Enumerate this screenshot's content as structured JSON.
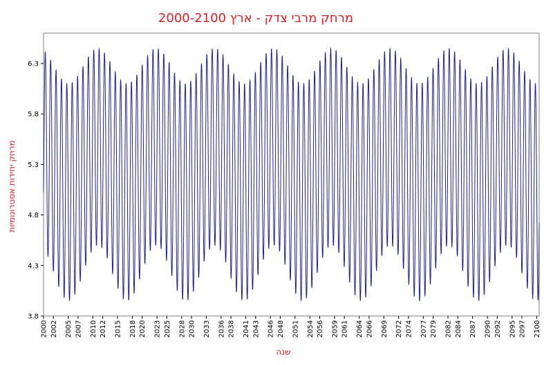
{
  "chart_data": {
    "type": "line",
    "title": "מרחק מרבי צדק - ארץ    2000-2100",
    "xlabel": "שנה",
    "ylabel": "מרחק יחידות אסטרונומיות",
    "xlim": [
      2000,
      2100.5
    ],
    "ylim": [
      3.8,
      6.6
    ],
    "y_ticks": [
      "3.8",
      "4.3",
      "4.8",
      "5.3",
      "5.8",
      "6.3"
    ],
    "x_ticks": [
      "2000",
      "2002",
      "2005",
      "2007",
      "2010",
      "2012",
      "2015",
      "2018",
      "2020",
      "2023",
      "2025",
      "2028",
      "2030",
      "2033",
      "2036",
      "2038",
      "2041",
      "2043",
      "2046",
      "2048",
      "2051",
      "2054",
      "2056",
      "2059",
      "2061",
      "2064",
      "2066",
      "2069",
      "2072",
      "2074",
      "2077",
      "2079",
      "2082",
      "2084",
      "2087",
      "2090",
      "2092",
      "2095",
      "2097",
      "2100"
    ],
    "series": [
      {
        "color": "#1a237e",
        "description": "Oscillating distance curve with a ~1.09 year synodic period between ~3.95 and ~6.45 AU, modulated by a ~11.86 year envelope",
        "envelope_minima_years": [
          2011.0,
          2022.9,
          2034.7,
          2046.6,
          2058.5,
          2070.3,
          2082.2,
          2094.0
        ],
        "max_range": [
          6.1,
          6.45
        ],
        "min_range": [
          3.95,
          4.5
        ],
        "synodic_period_years": 1.0921,
        "orbital_period_years": 11.862,
        "start_value": 5.05
      }
    ],
    "grid": false,
    "legend": "none"
  },
  "colors": {
    "title": "#e31b23",
    "axis_title": "#e31b23",
    "line": "#1a237e",
    "frame": "#808080"
  }
}
